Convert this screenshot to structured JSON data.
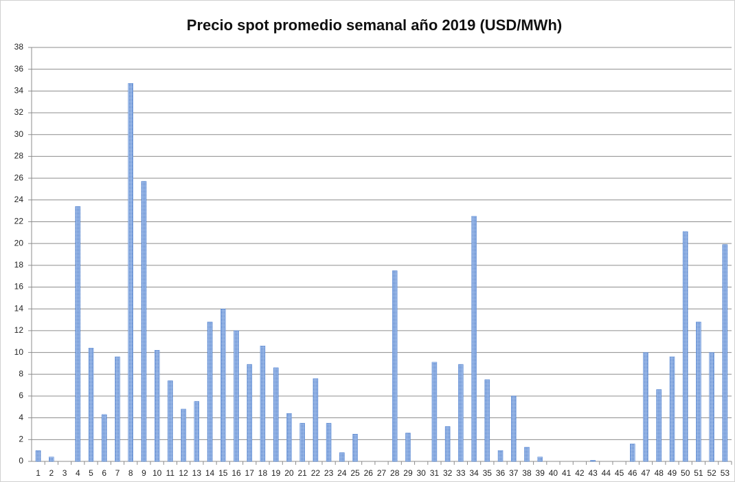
{
  "chart_data": {
    "type": "bar",
    "title": "Precio spot promedio semanal año 2019 (USD/MWh)",
    "categories": [
      "1",
      "2",
      "3",
      "4",
      "5",
      "6",
      "7",
      "8",
      "9",
      "10",
      "11",
      "12",
      "13",
      "14",
      "15",
      "16",
      "17",
      "18",
      "19",
      "20",
      "21",
      "22",
      "23",
      "24",
      "25",
      "26",
      "27",
      "28",
      "29",
      "30",
      "31",
      "32",
      "33",
      "34",
      "35",
      "36",
      "37",
      "38",
      "39",
      "40",
      "41",
      "42",
      "43",
      "44",
      "45",
      "46",
      "47",
      "48",
      "49",
      "50",
      "51",
      "52",
      "53"
    ],
    "values": [
      1.0,
      0.4,
      0,
      23.4,
      10.4,
      4.3,
      9.6,
      34.7,
      25.7,
      10.2,
      7.4,
      4.8,
      5.5,
      12.8,
      14.0,
      12.0,
      8.9,
      10.6,
      8.6,
      4.4,
      3.5,
      7.6,
      3.5,
      0.8,
      2.5,
      0,
      0,
      17.5,
      2.6,
      0,
      9.1,
      3.2,
      8.9,
      22.5,
      7.5,
      1.0,
      6.0,
      1.3,
      0.4,
      0,
      0,
      0,
      0.1,
      0,
      0,
      1.6,
      10.0,
      6.6,
      9.6,
      21.1,
      12.8,
      10.0,
      19.9
    ],
    "color": "#4f81d0",
    "ylim": [
      0,
      38
    ],
    "yticks": [
      0,
      2,
      4,
      6,
      8,
      10,
      12,
      14,
      16,
      18,
      20,
      22,
      24,
      26,
      28,
      30,
      32,
      34,
      36,
      38
    ],
    "grid": true
  }
}
